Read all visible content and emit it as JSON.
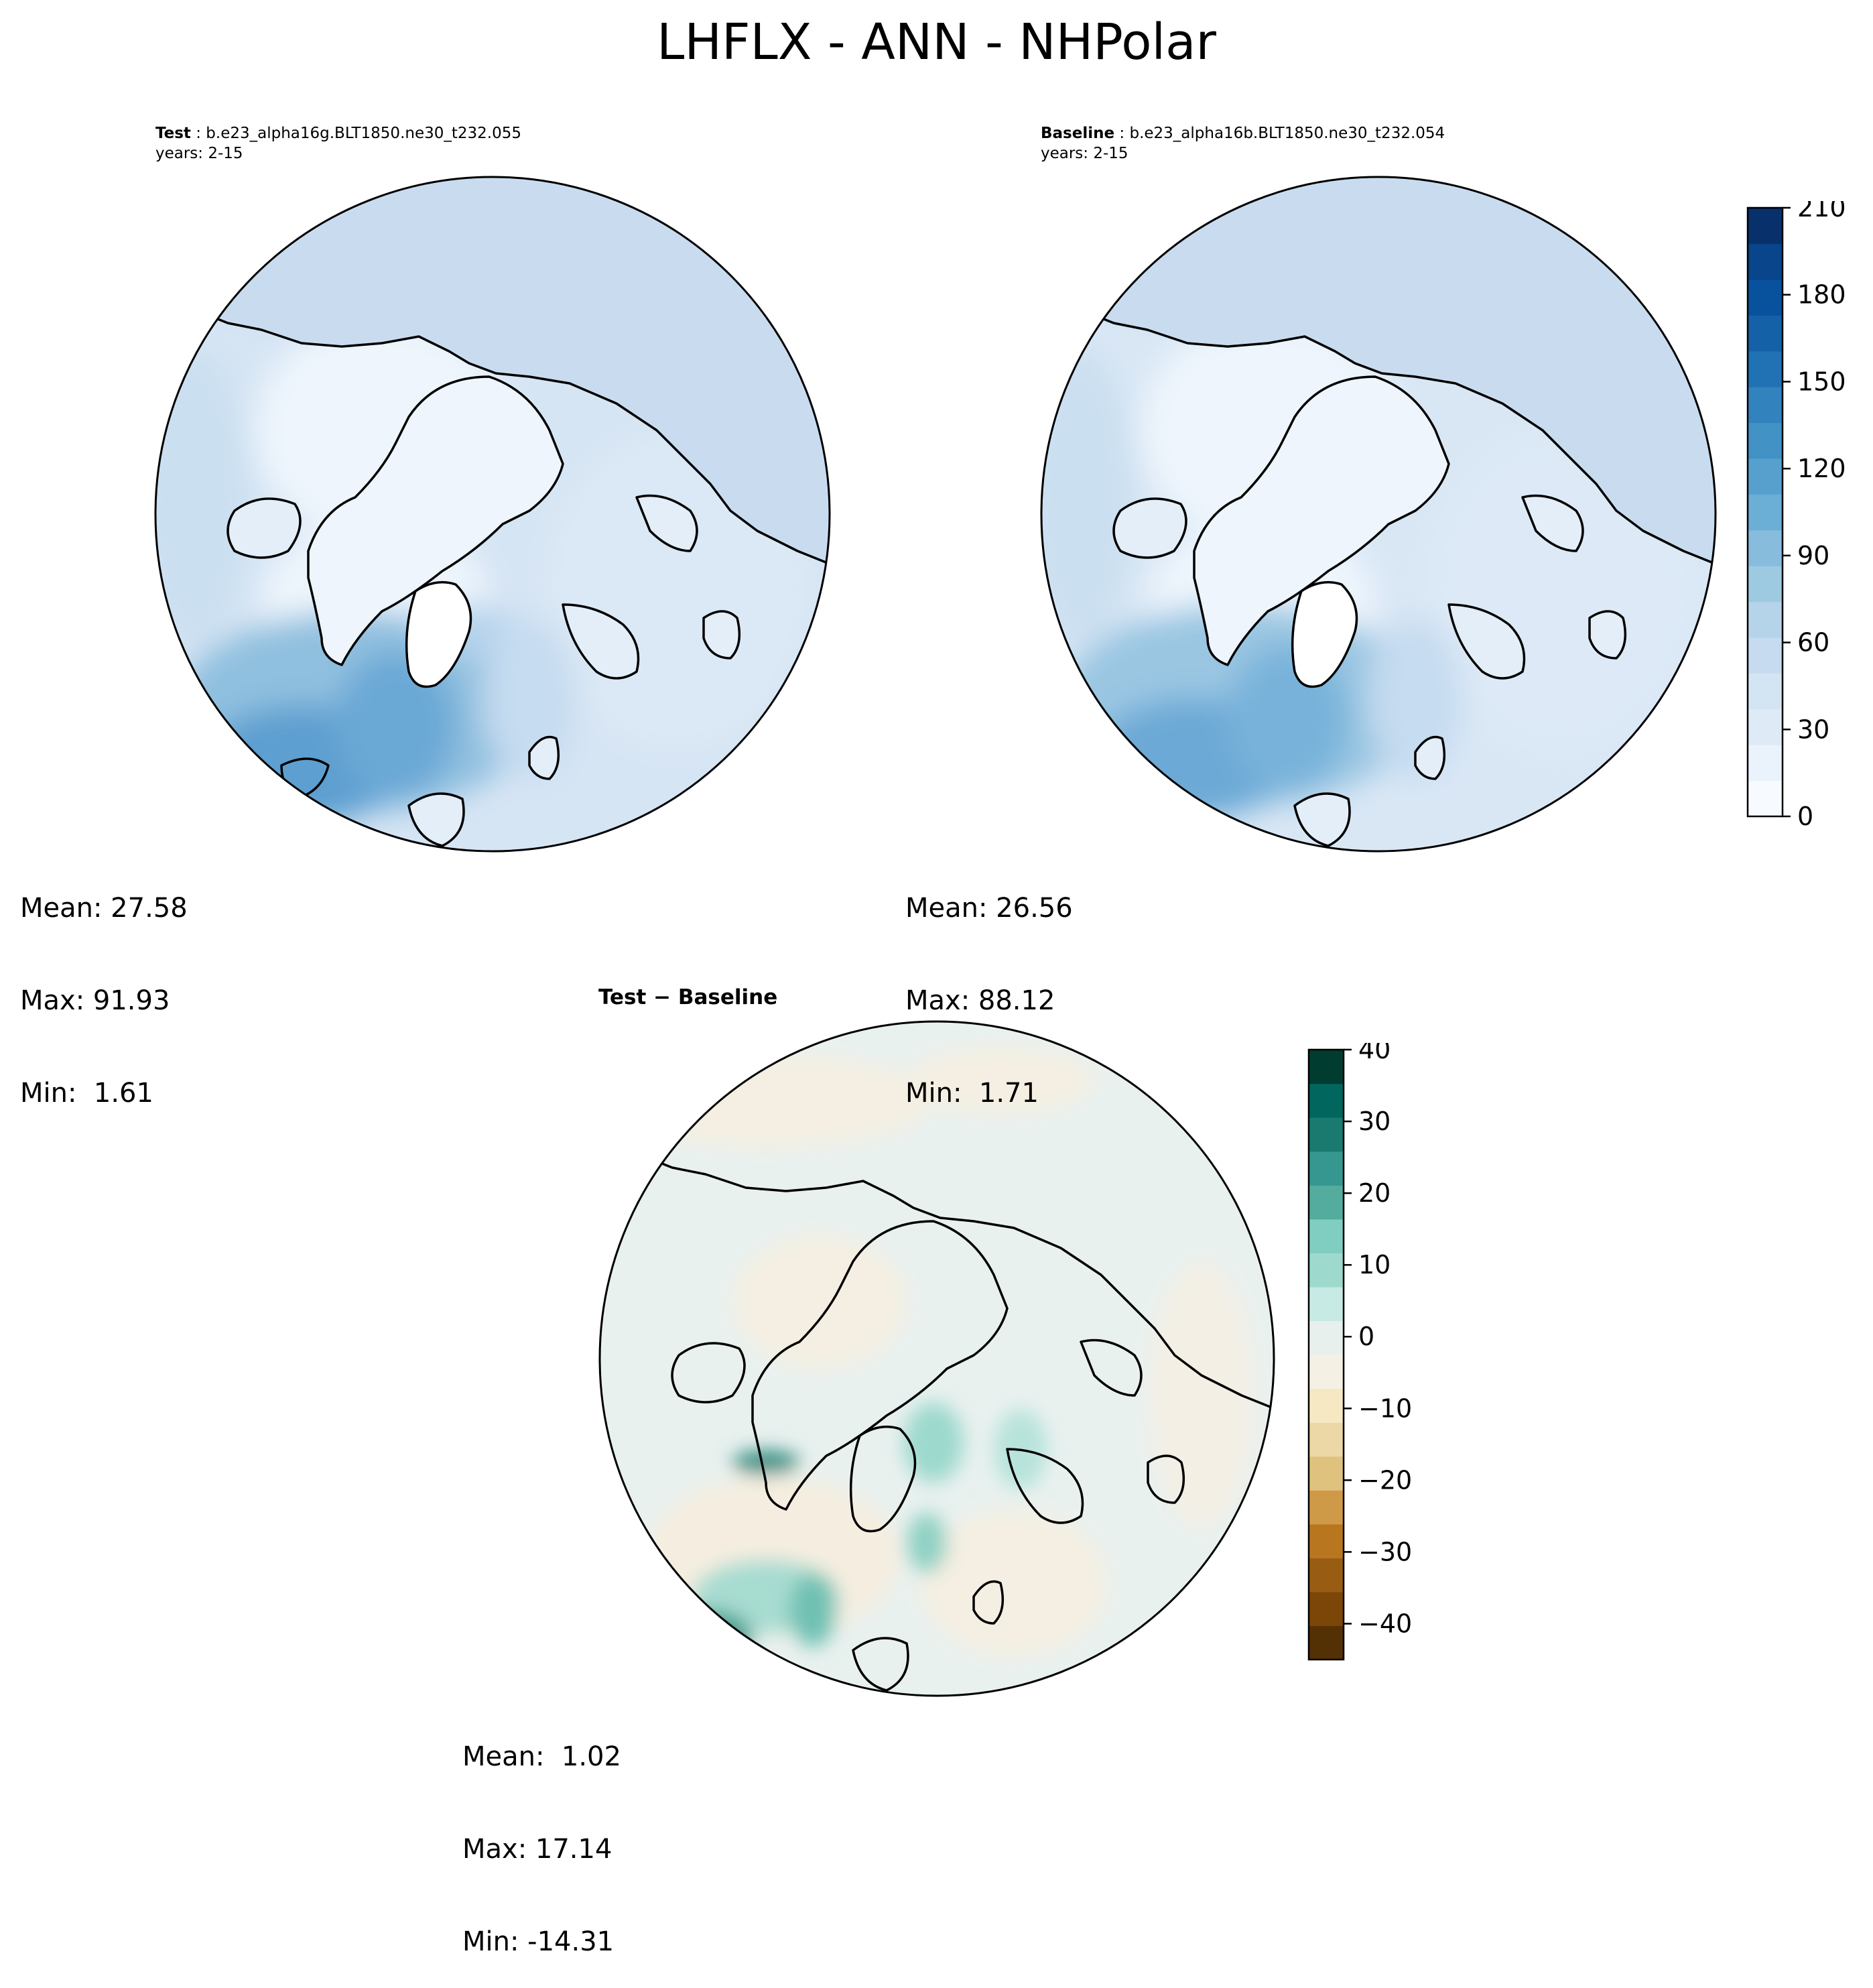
{
  "figure": {
    "title": "LHFLX - ANN - NHPolar"
  },
  "panels": {
    "test": {
      "label": "Test",
      "case": "b.e23_alpha16g.BLT1850.ne30_t232.055",
      "years": "years: 2-15",
      "stats": {
        "mean": "Mean: 27.58",
        "max": "Max: 91.93",
        "min": "Min:  1.61"
      }
    },
    "baseline": {
      "label": "Baseline",
      "case": "b.e23_alpha16b.BLT1850.ne30_t232.054",
      "years": "years: 2-15",
      "stats": {
        "mean": "Mean: 26.56",
        "max": "Max: 88.12",
        "min": "Min:  1.71"
      }
    },
    "diff": {
      "title": "Test − Baseline",
      "stats": {
        "mean": "Mean:  1.02",
        "max": "Max: 17.14",
        "min": "Min: -14.31"
      }
    }
  },
  "colorbars": {
    "main": {
      "colormap": "Blues",
      "vmin": 0,
      "vmax": 210,
      "tick_labels": [
        "0",
        "30",
        "60",
        "90",
        "120",
        "150",
        "180",
        "210"
      ],
      "colors": [
        "#f7fbff",
        "#eaf3fb",
        "#deebf7",
        "#d3e4f3",
        "#c6dbef",
        "#b6d4e9",
        "#9ecae1",
        "#87bcdc",
        "#6baed6",
        "#57a0ce",
        "#4292c6",
        "#3282be",
        "#2171b5",
        "#1461a8",
        "#08519c",
        "#08458a",
        "#08306b"
      ]
    },
    "diff": {
      "colormap": "BrBG",
      "vmin": -45,
      "vmax": 40,
      "tick_labels": [
        "40",
        "30",
        "20",
        "10",
        "0",
        "−10",
        "−20",
        "−30",
        "−40"
      ],
      "colors": [
        "#543005",
        "#7b4608",
        "#985c12",
        "#b8771f",
        "#cf9a48",
        "#dfc27d",
        "#ecd8a6",
        "#f6e8c3",
        "#f5f0e4",
        "#e8f0ee",
        "#c7eae5",
        "#9dd9cd",
        "#80cdc1",
        "#54ac9f",
        "#35978f",
        "#1a7a70",
        "#01665e",
        "#003c30"
      ]
    }
  }
}
